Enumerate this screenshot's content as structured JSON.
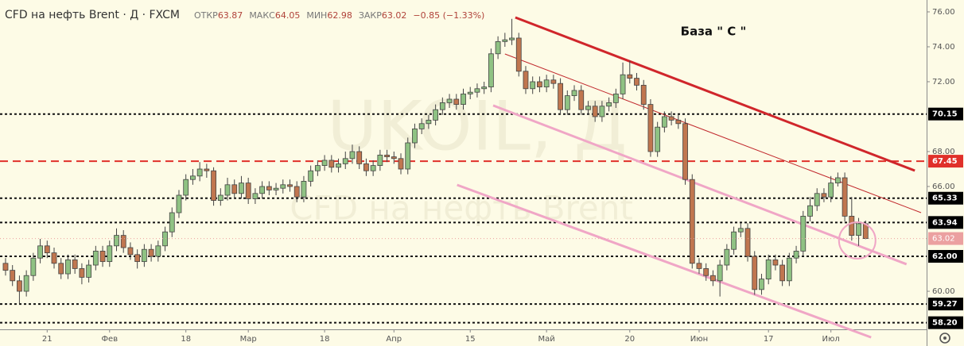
{
  "chart_data": {
    "type": "candlestick",
    "title": "CFD на нефть Brent · Д · FXCM",
    "ohlc_labels": [
      "ОТКР",
      "МАКС",
      "МИН",
      "ЗАКР"
    ],
    "change": "−0.85 (−1.33%)",
    "watermark_symbol": "UKOIL, Д",
    "watermark_name": "CFD на нефть Brent",
    "annotation": "База  \" С \"",
    "up_color": "#8fc283",
    "down_color": "#c0764f",
    "x": [
      0,
      1,
      2,
      3,
      4,
      5,
      6,
      7,
      8,
      9,
      10,
      11,
      12,
      13,
      14,
      15,
      16,
      17,
      18,
      19,
      20,
      21,
      22,
      23,
      24,
      25,
      26,
      27,
      28,
      29,
      30,
      31,
      32,
      33,
      34,
      35,
      36,
      37,
      38,
      39,
      40,
      41,
      42,
      43,
      44,
      45,
      46,
      47,
      48,
      49,
      50,
      51,
      52,
      53,
      54,
      55,
      56,
      57,
      58,
      59,
      60,
      61,
      62,
      63,
      64,
      65,
      66,
      67,
      68,
      69,
      70,
      71,
      72,
      73,
      74,
      75,
      76,
      77,
      78,
      79,
      80,
      81,
      82,
      83,
      84,
      85,
      86,
      87,
      88,
      89,
      90,
      91,
      92,
      93,
      94,
      95,
      96,
      97,
      98,
      99,
      100,
      101,
      102,
      103,
      104,
      105,
      106,
      107,
      108,
      109,
      110,
      111,
      112,
      113,
      114,
      115,
      116,
      117,
      118,
      119,
      120,
      121,
      122,
      123,
      124
    ],
    "open": [
      61.6,
      61.2,
      60.6,
      60.0,
      60.9,
      61.9,
      62.6,
      62.2,
      61.6,
      61.0,
      61.8,
      61.3,
      60.8,
      61.5,
      62.3,
      61.7,
      62.6,
      63.2,
      62.5,
      62.1,
      61.7,
      62.4,
      62.0,
      62.6,
      63.4,
      64.5,
      65.5,
      66.4,
      66.6,
      67.0,
      66.9,
      65.2,
      65.5,
      66.1,
      65.6,
      66.2,
      65.3,
      65.6,
      66.0,
      65.8,
      65.9,
      66.1,
      66.0,
      65.4,
      66.3,
      66.9,
      67.2,
      67.5,
      67.1,
      67.3,
      67.6,
      68.0,
      67.3,
      66.9,
      67.2,
      67.8,
      67.7,
      67.6,
      67.0,
      68.5,
      69.3,
      69.6,
      69.8,
      70.4,
      70.8,
      71.0,
      70.7,
      71.3,
      71.4,
      71.6,
      71.7,
      73.6,
      74.3,
      74.4,
      74.5,
      72.6,
      71.6,
      72.0,
      71.7,
      72.1,
      71.9,
      70.4,
      71.2,
      71.5,
      70.4,
      70.6,
      70.0,
      70.6,
      70.8,
      71.3,
      72.4,
      72.2,
      71.8,
      70.7,
      68.0,
      69.4,
      70.0,
      69.8,
      69.6,
      66.4,
      61.6,
      61.3,
      60.9,
      60.6,
      61.5,
      62.4,
      63.4,
      63.6,
      62.0,
      60.1,
      60.7,
      61.8,
      61.5,
      60.6,
      61.9,
      62.3,
      64.3,
      64.9,
      65.6,
      65.4,
      66.2,
      66.5,
      64.3,
      63.2,
      63.87
    ],
    "high": [
      61.9,
      61.5,
      60.9,
      61.2,
      62.2,
      63.0,
      62.9,
      62.5,
      61.9,
      62.1,
      62.1,
      61.6,
      61.8,
      62.6,
      62.6,
      62.9,
      63.6,
      63.5,
      62.8,
      62.4,
      62.7,
      62.7,
      62.9,
      63.7,
      64.8,
      65.8,
      66.7,
      67.0,
      67.4,
      67.3,
      67.1,
      65.9,
      66.5,
      66.4,
      66.6,
      66.5,
      65.9,
      66.3,
      66.3,
      66.2,
      66.4,
      66.4,
      66.3,
      66.6,
      67.2,
      67.5,
      67.8,
      67.8,
      67.6,
      68.0,
      68.4,
      68.3,
      67.6,
      67.5,
      68.1,
      68.1,
      68.0,
      67.9,
      68.8,
      69.6,
      69.9,
      70.1,
      70.7,
      71.1,
      71.3,
      71.3,
      71.6,
      71.7,
      71.9,
      72.0,
      73.9,
      74.6,
      74.8,
      75.6,
      74.8,
      72.9,
      72.3,
      72.3,
      72.4,
      72.4,
      72.2,
      71.5,
      71.8,
      71.8,
      70.9,
      70.9,
      70.9,
      71.1,
      71.6,
      73.1,
      73.2,
      72.5,
      72.1,
      71.0,
      69.7,
      70.3,
      70.3,
      70.1,
      69.9,
      66.7,
      61.9,
      61.6,
      61.2,
      61.8,
      62.7,
      63.7,
      63.9,
      63.9,
      62.3,
      61.0,
      62.1,
      62.1,
      61.8,
      62.2,
      62.6,
      64.6,
      65.4,
      65.9,
      65.9,
      66.6,
      66.8,
      66.8,
      65.4,
      64.2,
      64.05
    ],
    "low": [
      60.9,
      60.3,
      59.3,
      59.7,
      60.6,
      61.6,
      61.9,
      61.3,
      60.7,
      60.7,
      61.0,
      60.4,
      60.5,
      61.2,
      61.4,
      61.4,
      62.3,
      62.2,
      61.8,
      61.3,
      61.4,
      61.7,
      61.7,
      62.3,
      63.1,
      64.2,
      65.2,
      66.1,
      66.3,
      66.5,
      64.9,
      64.9,
      65.2,
      65.3,
      65.3,
      65.0,
      65.0,
      65.3,
      65.5,
      65.5,
      65.6,
      65.7,
      65.1,
      65.1,
      66.0,
      66.6,
      66.9,
      66.8,
      66.8,
      67.0,
      67.3,
      67.0,
      66.6,
      66.6,
      66.9,
      67.4,
      67.3,
      66.7,
      66.7,
      68.2,
      69.0,
      69.3,
      69.5,
      70.1,
      70.5,
      70.4,
      70.4,
      71.0,
      71.1,
      71.3,
      71.4,
      73.3,
      74.0,
      74.1,
      72.3,
      71.3,
      71.3,
      71.4,
      71.4,
      71.6,
      70.1,
      70.1,
      70.9,
      70.1,
      70.1,
      69.7,
      69.7,
      70.3,
      70.5,
      71.0,
      71.9,
      71.5,
      70.4,
      67.7,
      67.7,
      69.1,
      69.5,
      69.3,
      66.1,
      61.3,
      61.0,
      60.6,
      60.3,
      59.7,
      61.2,
      62.1,
      63.1,
      61.7,
      59.8,
      59.8,
      60.4,
      61.2,
      60.3,
      60.3,
      61.6,
      62.0,
      64.0,
      64.6,
      65.1,
      65.1,
      66.0,
      64.0,
      62.9,
      62.6,
      62.98
    ],
    "close": [
      61.2,
      60.6,
      60.0,
      60.9,
      61.9,
      62.6,
      62.2,
      61.6,
      61.0,
      61.8,
      61.3,
      60.8,
      61.5,
      62.3,
      61.7,
      62.6,
      63.2,
      62.5,
      62.1,
      61.7,
      62.4,
      62.0,
      62.6,
      63.4,
      64.5,
      65.5,
      66.4,
      66.6,
      67.0,
      66.9,
      65.2,
      65.5,
      66.1,
      65.6,
      66.2,
      65.3,
      65.6,
      66.0,
      65.8,
      65.9,
      66.1,
      66.0,
      65.4,
      66.3,
      66.9,
      67.2,
      67.5,
      67.1,
      67.3,
      67.6,
      68.0,
      67.3,
      66.9,
      67.2,
      67.8,
      67.7,
      67.6,
      67.0,
      68.5,
      69.3,
      69.6,
      69.8,
      70.4,
      70.8,
      71.0,
      70.7,
      71.3,
      71.4,
      71.6,
      71.7,
      73.6,
      74.3,
      74.4,
      74.5,
      72.6,
      71.6,
      72.0,
      71.7,
      72.1,
      71.9,
      70.4,
      71.2,
      71.5,
      70.4,
      70.6,
      70.0,
      70.6,
      70.8,
      71.3,
      72.4,
      72.2,
      71.8,
      70.7,
      68.0,
      69.4,
      70.0,
      69.8,
      69.6,
      66.4,
      61.6,
      61.3,
      60.9,
      60.6,
      61.5,
      62.4,
      63.4,
      63.6,
      62.0,
      60.1,
      60.7,
      61.8,
      61.5,
      60.6,
      61.9,
      62.3,
      64.3,
      64.9,
      65.6,
      65.4,
      66.2,
      66.5,
      64.3,
      63.2,
      63.87,
      63.02
    ],
    "xlim": [
      -0.8,
      132.8
    ],
    "xticks": [
      {
        "value": 6,
        "label": "21"
      },
      {
        "value": 15,
        "label": "Фев"
      },
      {
        "value": 26,
        "label": "18"
      },
      {
        "value": 35,
        "label": "Мар"
      },
      {
        "value": 46,
        "label": "18"
      },
      {
        "value": 56,
        "label": "Апр"
      },
      {
        "value": 67,
        "label": "15"
      },
      {
        "value": 78,
        "label": "Май"
      },
      {
        "value": 90,
        "label": "20"
      },
      {
        "value": 100,
        "label": "Июн"
      },
      {
        "value": 110,
        "label": "17"
      },
      {
        "value": 119,
        "label": "Июл"
      }
    ],
    "ylim": [
      57.82,
      76.68
    ],
    "yticks": [
      {
        "value": 60,
        "label": "60.00"
      },
      {
        "value": 66,
        "label": "66.00"
      },
      {
        "value": 68,
        "label": "68.00"
      },
      {
        "value": 72,
        "label": "72.00"
      },
      {
        "value": 74,
        "label": "74.00"
      },
      {
        "value": 76,
        "label": "76.00"
      }
    ],
    "levels": [
      {
        "value": 70.15,
        "color": "#111111",
        "dash": "3,3",
        "width": 2
      },
      {
        "value": 67.45,
        "color": "#e0302a",
        "dash": "10,6",
        "width": 2
      },
      {
        "value": 65.33,
        "color": "#111111",
        "dash": "3,3",
        "width": 2
      },
      {
        "value": 63.94,
        "color": "#111111",
        "dash": "3,3",
        "width": 2
      },
      {
        "value": 62,
        "label": "62.00",
        "color": "#111111",
        "dash": "3,3",
        "width": 2
      },
      {
        "value": 59.27,
        "color": "#111111",
        "dash": "3,3",
        "width": 2
      },
      {
        "value": 58.2,
        "label": "58.20",
        "color": "#111111",
        "dash": "3,3",
        "width": 2
      }
    ],
    "last_price_color": "#eba0a0",
    "trendlines": [
      {
        "points": [
          [
            73.5,
            75.68
          ],
          [
            131.1,
            66.91
          ]
        ],
        "color": "#d0262b",
        "width": 3
      },
      {
        "points": [
          [
            72.0,
            73.59
          ],
          [
            132.0,
            64.5
          ]
        ],
        "color": "#c0262b",
        "width": 1
      },
      {
        "points": [
          [
            70.3,
            70.64
          ],
          [
            129.9,
            61.55
          ]
        ],
        "color": "#f0a6c6",
        "width": 3
      },
      {
        "points": [
          [
            65.1,
            66.09
          ],
          [
            124.8,
            57.36
          ]
        ],
        "color": "#f0a6c6",
        "width": 3
      }
    ],
    "circle": {
      "x": 122.8,
      "y": 62.91,
      "color": "#f0a6c6"
    }
  }
}
